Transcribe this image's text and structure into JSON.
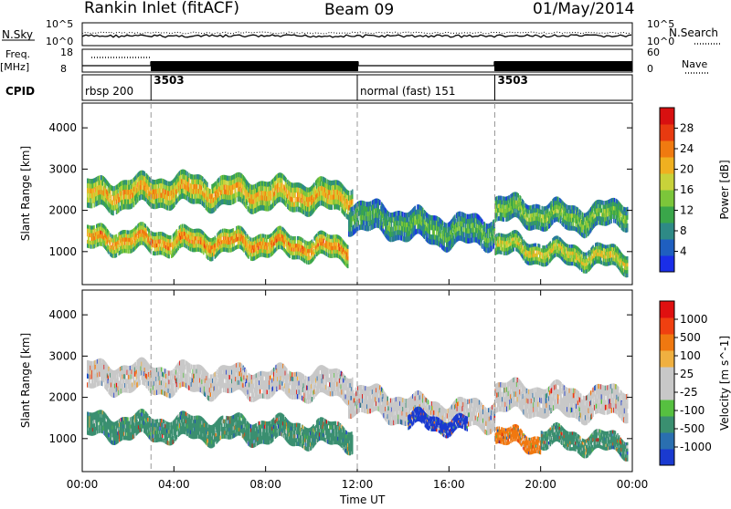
{
  "header": {
    "station": "Rankin Inlet (fitACF)",
    "beam": "Beam 09",
    "date": "01/May/2014"
  },
  "status_panel": {
    "nsky_label": "N.Sky",
    "nsky_ticks": [
      "10^5",
      "10^0"
    ],
    "nsearch_label": "N.Search",
    "nsearch_ticks": [
      "10^5",
      "10^0"
    ],
    "freq_label": "Freq.",
    "freq_unit": "[MHz]",
    "freq_ticks": [
      "18",
      "8"
    ],
    "nave_label": "Nave",
    "nave_ticks": [
      "60",
      "0"
    ],
    "cpid_label": "CPID",
    "cpid_segments": [
      {
        "label": "rbsp 200",
        "start_hour": 0.0,
        "end_hour": 3.0
      },
      {
        "label": "3503",
        "start_hour": 3.0,
        "end_hour": 12.0
      },
      {
        "label": "normal (fast) 151",
        "start_hour": 12.0,
        "end_hour": 18.0
      },
      {
        "label": "3503",
        "start_hour": 18.0,
        "end_hour": 24.0
      }
    ]
  },
  "chart_data": [
    {
      "type": "heatmap",
      "name": "power",
      "ylabel": "Slant Range [km]",
      "yticks": [
        "1000",
        "2000",
        "3000",
        "4000"
      ],
      "ylim": [
        200,
        4600
      ],
      "xlim": [
        0,
        24
      ],
      "colorbar": {
        "label": "Power [dB]",
        "ticks": [
          "4",
          "8",
          "12",
          "16",
          "20",
          "24",
          "28"
        ],
        "range": [
          0,
          32
        ],
        "colors": [
          "#1a2ee8",
          "#1f5fc0",
          "#2e8a86",
          "#3aa64a",
          "#7cc63a",
          "#c8d23a",
          "#f0b020",
          "#f07a10",
          "#e83a10",
          "#d81010"
        ]
      },
      "bands": [
        {
          "from_hour": 0.2,
          "to_hour": 11.8,
          "center_km": [
            2350,
            2500,
            2400,
            2300
          ],
          "width_km": 700,
          "level": 0.72
        },
        {
          "from_hour": 0.2,
          "to_hour": 11.6,
          "center_km": [
            1300,
            1250,
            1200,
            1050
          ],
          "width_km": 550,
          "level": 0.78
        },
        {
          "from_hour": 11.6,
          "to_hour": 18.0,
          "center_km": [
            1900,
            1700,
            1500,
            1500
          ],
          "width_km": 700,
          "level": 0.42
        },
        {
          "from_hour": 18.0,
          "to_hour": 23.8,
          "center_km": [
            2050,
            1900,
            1800,
            1950
          ],
          "width_km": 600,
          "level": 0.48
        },
        {
          "from_hour": 18.0,
          "to_hour": 23.8,
          "center_km": [
            1200,
            1000,
            900,
            800
          ],
          "width_km": 500,
          "level": 0.62
        }
      ]
    },
    {
      "type": "heatmap",
      "name": "velocity",
      "xlabel": "Time UT",
      "ylabel": "Slant Range [km]",
      "xticks": [
        "00:00",
        "04:00",
        "08:00",
        "12:00",
        "16:00",
        "20:00",
        "00:00"
      ],
      "yticks": [
        "1000",
        "2000",
        "3000",
        "4000"
      ],
      "ylim": [
        200,
        4600
      ],
      "xlim": [
        0,
        24
      ],
      "colorbar": {
        "label": "Velocity [m s^-1]",
        "ticks": [
          "1000",
          "500",
          "100",
          "25",
          "-25",
          "-100",
          "-500",
          "-1000"
        ],
        "colors": [
          "#1a3ad0",
          "#2a6fb0",
          "#3a8f70",
          "#56c040",
          "#c8c8c8",
          "#c8c8c8",
          "#f0b040",
          "#f07810",
          "#f04010",
          "#e01010"
        ]
      },
      "bands": [
        {
          "from_hour": 0.2,
          "to_hour": 11.8,
          "center_km": [
            2500,
            2450,
            2350,
            2300
          ],
          "width_km": 650,
          "level": 0.5,
          "color": "#c8c8c8"
        },
        {
          "from_hour": 0.2,
          "to_hour": 11.8,
          "center_km": [
            1300,
            1250,
            1200,
            1050
          ],
          "width_km": 550,
          "level": 0.7,
          "color": "#3a8f70"
        },
        {
          "from_hour": 11.6,
          "to_hour": 18.0,
          "center_km": [
            2000,
            1750,
            1550,
            1600
          ],
          "width_km": 650,
          "level": 0.6,
          "color": "#c8c8c8"
        },
        {
          "from_hour": 14.2,
          "to_hour": 16.8,
          "center_km": [
            1450,
            1400,
            1350,
            1300
          ],
          "width_km": 350,
          "level": 0.8,
          "color": "#1a3ad0"
        },
        {
          "from_hour": 18.0,
          "to_hour": 23.8,
          "center_km": [
            2000,
            1950,
            1850,
            1900
          ],
          "width_km": 700,
          "level": 0.6,
          "color": "#c8c8c8"
        },
        {
          "from_hour": 18.0,
          "to_hour": 20.0,
          "center_km": [
            1100,
            1000,
            950,
            900
          ],
          "width_km": 400,
          "level": 0.7,
          "color": "#f07810"
        },
        {
          "from_hour": 20.0,
          "to_hour": 23.8,
          "center_km": [
            1050,
            950,
            900,
            850
          ],
          "width_km": 450,
          "level": 0.6,
          "color": "#3a8f70"
        }
      ]
    }
  ]
}
